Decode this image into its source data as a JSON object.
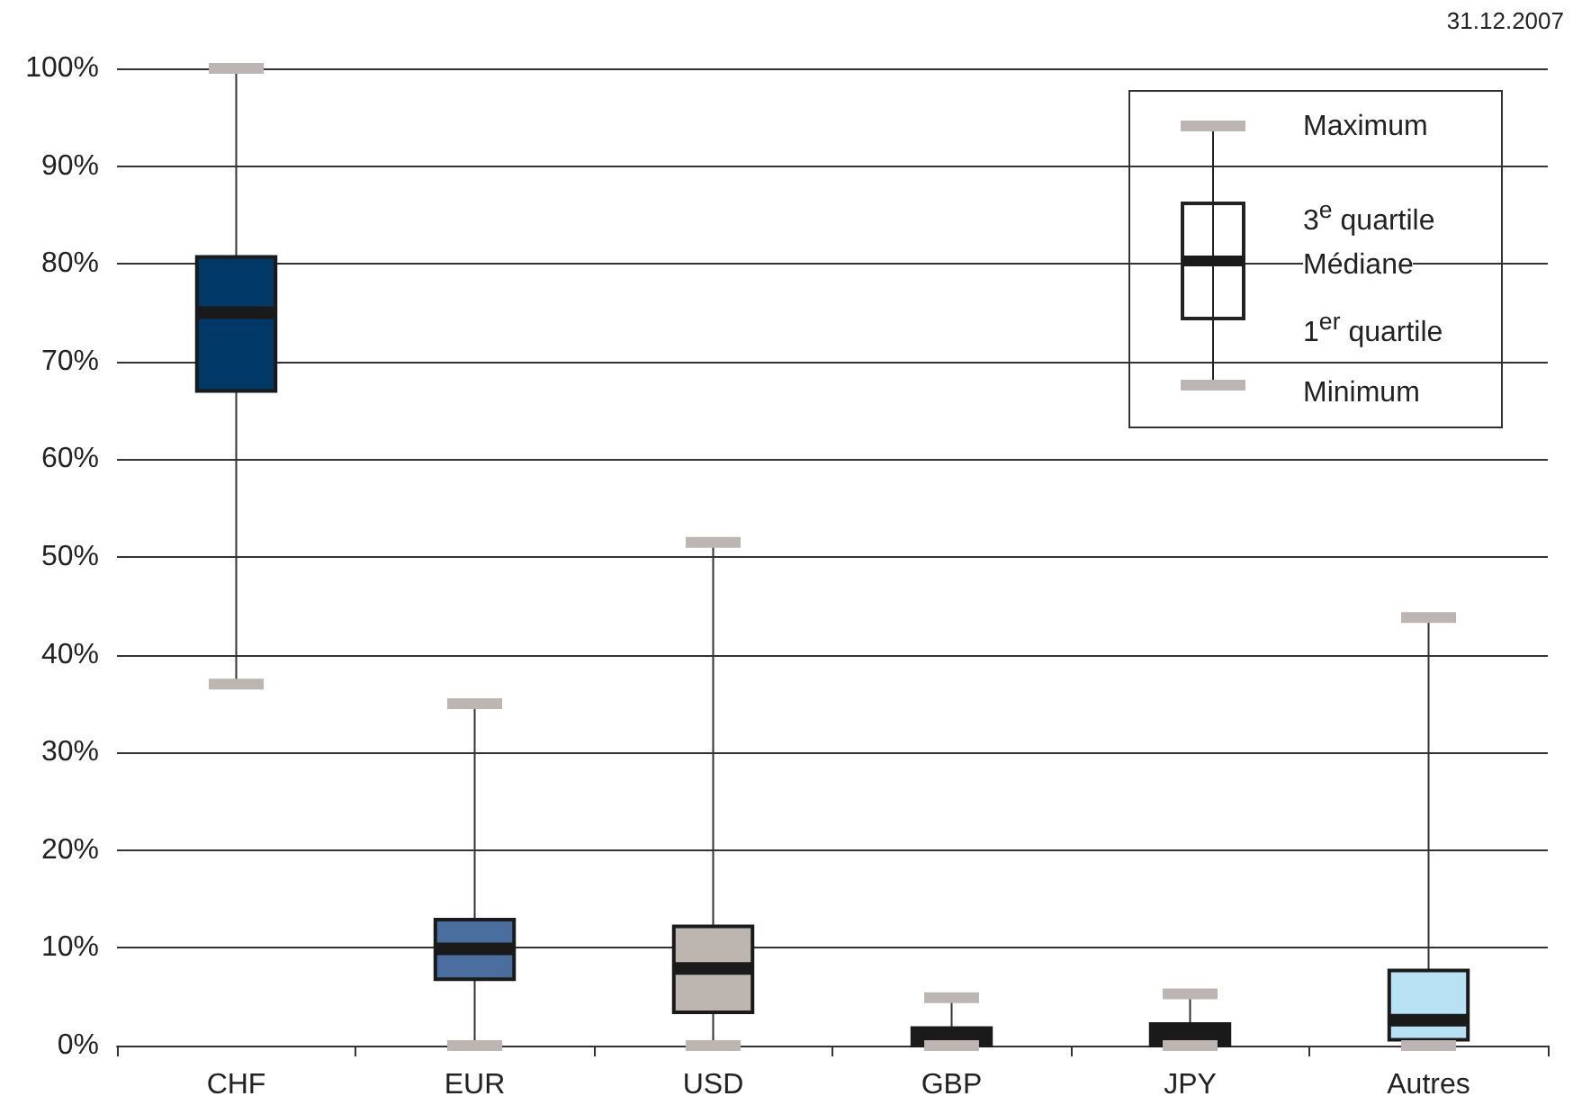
{
  "chart_data": {
    "type": "box",
    "categories": [
      "CHF",
      "EUR",
      "USD",
      "GBP",
      "JPY",
      "Autres"
    ],
    "boxes": [
      {
        "low": 37,
        "q1": 67,
        "median": 75,
        "q3": 80.7,
        "high": 100
      },
      {
        "low": 0,
        "q1": 6.8,
        "median": 9.9,
        "q3": 12.9,
        "high": 35
      },
      {
        "low": 0,
        "q1": 3.4,
        "median": 7.9,
        "q3": 12.2,
        "high": 51.5
      },
      {
        "low": 0,
        "q1": 0,
        "median": 1.3,
        "q3": 1.8,
        "high": 4.9
      },
      {
        "low": 0,
        "q1": 0,
        "median": 1,
        "q3": 2.2,
        "high": 5.3
      },
      {
        "low": 0,
        "q1": 0.6,
        "median": 2.6,
        "q3": 7.7,
        "high": 43.8
      }
    ],
    "colors": [
      "#003868",
      "#4a6f9f",
      "#bcb5b0",
      "#1a1a1a",
      "#1a1a1a",
      "#b8e2f4"
    ],
    "ylim": [
      0,
      100
    ],
    "yticks": [
      {
        "value": 0,
        "label": "0%"
      },
      {
        "value": 10,
        "label": "10%"
      },
      {
        "value": 20,
        "label": "20%"
      },
      {
        "value": 30,
        "label": "30%"
      },
      {
        "value": 40,
        "label": "40%"
      },
      {
        "value": 50,
        "label": "50%"
      },
      {
        "value": 60,
        "label": "60%"
      },
      {
        "value": 70,
        "label": "70%"
      },
      {
        "value": 80,
        "label": "80%"
      },
      {
        "value": 90,
        "label": "90%"
      },
      {
        "value": 100,
        "label": "100%"
      }
    ],
    "grid": "y",
    "annotations": [
      "31.12.2007",
      "Maximum",
      "3$^{e}$ quartile",
      "Médiane",
      "1$^{er}$ quartile",
      "Minimum"
    ]
  }
}
